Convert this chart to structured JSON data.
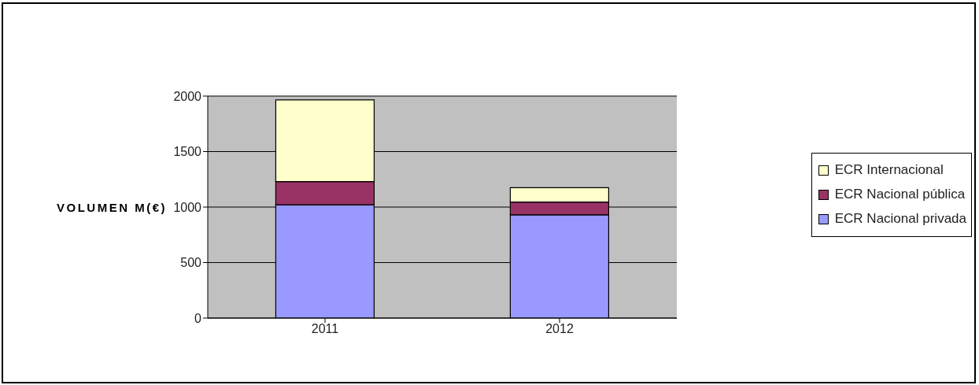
{
  "chart_data": {
    "type": "bar",
    "stacked": true,
    "ylabel": "VOLUMEN M(€)",
    "categories": [
      "2011",
      "2012"
    ],
    "series": [
      {
        "name": "ECR Nacional privada",
        "color": "#9999ff",
        "values": [
          1020,
          930
        ]
      },
      {
        "name": "ECR Nacional pública",
        "color": "#993366",
        "values": [
          210,
          115
        ]
      },
      {
        "name": "ECR Internacional",
        "color": "#ffffcc",
        "values": [
          735,
          130
        ]
      }
    ],
    "ylim": [
      0,
      2000
    ],
    "yticks": [
      0,
      500,
      1000,
      1500,
      2000
    ],
    "grid": "y",
    "legend": "right"
  }
}
